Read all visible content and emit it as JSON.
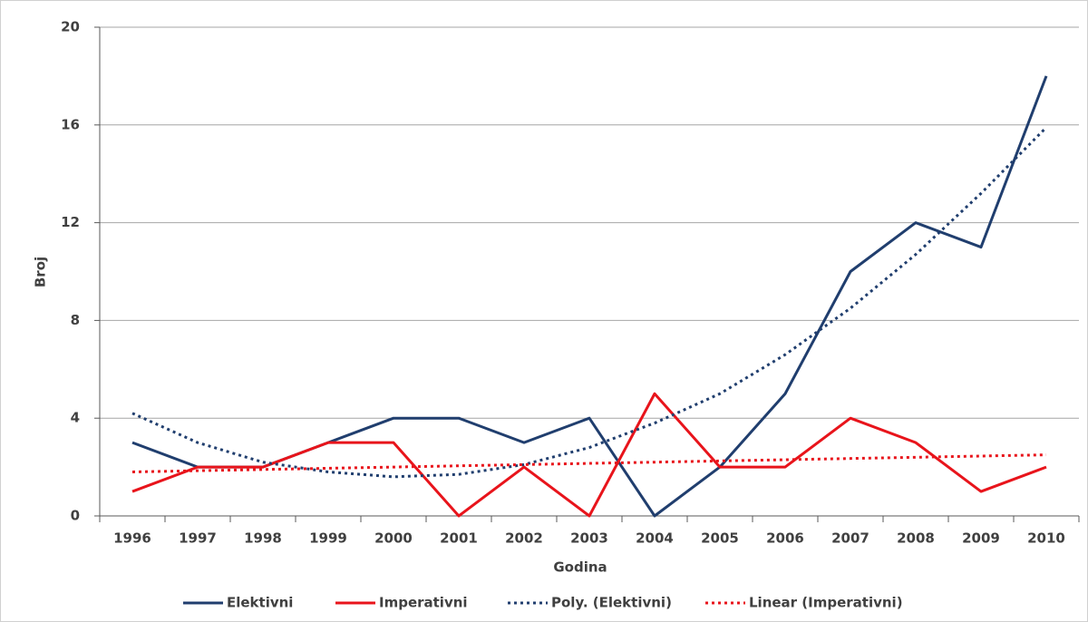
{
  "chart_data": {
    "type": "line",
    "x_label": "Godina",
    "y_label": "Broj",
    "categories": [
      "1996",
      "1997",
      "1998",
      "1999",
      "2000",
      "2001",
      "2002",
      "2003",
      "2004",
      "2005",
      "2006",
      "2007",
      "2008",
      "2009",
      "2010"
    ],
    "series": [
      {
        "name": "Elektivni",
        "color": "#203e6e",
        "style": "solid",
        "values": [
          3,
          2,
          2,
          3,
          4,
          4,
          3,
          4,
          0,
          2,
          5,
          10,
          12,
          11,
          18
        ]
      },
      {
        "name": "Imperativni",
        "color": "#e8141b",
        "style": "solid",
        "values": [
          1,
          2,
          2,
          3,
          3,
          0,
          2,
          0,
          5,
          2,
          2,
          4,
          3,
          1,
          2
        ]
      },
      {
        "name": "Poly. (Elektivni)",
        "color": "#203e6e",
        "style": "dotted",
        "values": [
          4.2,
          3.0,
          2.2,
          1.8,
          1.6,
          1.7,
          2.1,
          2.8,
          3.8,
          5.0,
          6.6,
          8.5,
          10.7,
          13.2,
          15.9
        ]
      },
      {
        "name": "Linear (Imperativni)",
        "color": "#e8141b",
        "style": "dotted",
        "values": [
          1.8,
          1.85,
          1.9,
          1.95,
          2.0,
          2.05,
          2.1,
          2.15,
          2.2,
          2.25,
          2.3,
          2.35,
          2.4,
          2.45,
          2.5
        ]
      }
    ],
    "ylim": [
      0,
      20
    ],
    "yticks": [
      0,
      4,
      8,
      12,
      16,
      20
    ],
    "grid": true,
    "legend": "bottom"
  }
}
